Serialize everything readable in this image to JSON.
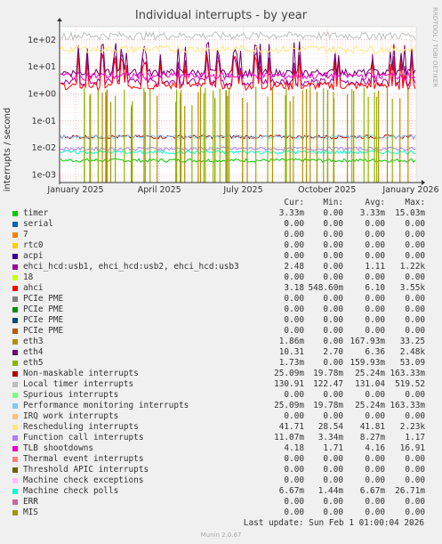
{
  "chart_data": {
    "type": "line",
    "title": "Individual interrupts - by year",
    "ylabel": "interrupts / second",
    "yscale": "log",
    "ylim": [
      0.0005,
      300
    ],
    "yticks": [
      "1e+02",
      "1e+01",
      "1e+00",
      "1e-01",
      "1e-02",
      "1e-03"
    ],
    "ytick_values": [
      100,
      10,
      1,
      0.1,
      0.01,
      0.001
    ],
    "xticks": [
      "January 2025",
      "April 2025",
      "July 2025",
      "October 2025",
      "January 2026"
    ],
    "grid": true,
    "columns": [
      "Cur:",
      "Min:",
      "Avg:",
      "Max:"
    ],
    "series": [
      {
        "name": "timer",
        "color": "#00cc00",
        "cur": "3.33m",
        "min": "0.00",
        "avg": "3.33m",
        "max": "15.03m",
        "level": 0.00333
      },
      {
        "name": "serial",
        "color": "#0066b3",
        "cur": "0.00",
        "min": "0.00",
        "avg": "0.00",
        "max": "0.00",
        "level": null
      },
      {
        "name": "7",
        "color": "#ff8000",
        "cur": "0.00",
        "min": "0.00",
        "avg": "0.00",
        "max": "0.00",
        "level": null
      },
      {
        "name": "rtc0",
        "color": "#ffcc00",
        "cur": "0.00",
        "min": "0.00",
        "avg": "0.00",
        "max": "0.00",
        "level": null
      },
      {
        "name": "acpi",
        "color": "#330099",
        "cur": "0.00",
        "min": "0.00",
        "avg": "0.00",
        "max": "0.00",
        "level": null
      },
      {
        "name": "ehci_hcd:usb1, ehci_hcd:usb2, ehci_hcd:usb3",
        "color": "#990099",
        "cur": "2.48",
        "min": "0.00",
        "avg": "1.11",
        "max": "1.22k",
        "level": 2.5
      },
      {
        "name": "18",
        "color": "#ccff00",
        "cur": "0.00",
        "min": "0.00",
        "avg": "0.00",
        "max": "0.00",
        "level": null
      },
      {
        "name": "ahci",
        "color": "#ff0000",
        "cur": "3.18",
        "min": "548.60m",
        "avg": "6.10",
        "max": "3.55k",
        "level": 1.8
      },
      {
        "name": "PCIe PME",
        "color": "#808080",
        "cur": "0.00",
        "min": "0.00",
        "avg": "0.00",
        "max": "0.00",
        "level": null
      },
      {
        "name": "PCIe PME",
        "color": "#008f00",
        "cur": "0.00",
        "min": "0.00",
        "avg": "0.00",
        "max": "0.00",
        "level": null
      },
      {
        "name": "PCIe PME",
        "color": "#00487d",
        "cur": "0.00",
        "min": "0.00",
        "avg": "0.00",
        "max": "0.00",
        "level": null
      },
      {
        "name": "PCIe PME",
        "color": "#b35a00",
        "cur": "0.00",
        "min": "0.00",
        "avg": "0.00",
        "max": "0.00",
        "level": null
      },
      {
        "name": "eth3",
        "color": "#b38f00",
        "cur": "1.86m",
        "min": "0.00",
        "avg": "167.93m",
        "max": "33.25",
        "level": null
      },
      {
        "name": "eth4",
        "color": "#6b006b",
        "cur": "10.31",
        "min": "2.70",
        "avg": "6.36",
        "max": "2.48k",
        "level": 5.5
      },
      {
        "name": "eth5",
        "color": "#8fb300",
        "cur": "1.73m",
        "min": "0.00",
        "avg": "159.93m",
        "max": "53.09",
        "level": null
      },
      {
        "name": "Non-maskable interrupts",
        "color": "#b30000",
        "cur": "25.09m",
        "min": "19.78m",
        "avg": "25.24m",
        "max": "163.33m",
        "level": 0.025
      },
      {
        "name": "Local timer interrupts",
        "color": "#bebebe",
        "cur": "130.91",
        "min": "122.47",
        "avg": "131.04",
        "max": "519.52",
        "level": 131
      },
      {
        "name": "Spurious interrupts",
        "color": "#80ff80",
        "cur": "0.00",
        "min": "0.00",
        "avg": "0.00",
        "max": "0.00",
        "level": null
      },
      {
        "name": "Performance monitoring interrupts",
        "color": "#80c9ff",
        "cur": "25.09m",
        "min": "19.78m",
        "avg": "25.24m",
        "max": "163.33m",
        "level": 0.025
      },
      {
        "name": "IRQ work interrupts",
        "color": "#ffc080",
        "cur": "0.00",
        "min": "0.00",
        "avg": "0.00",
        "max": "0.00",
        "level": null
      },
      {
        "name": "Rescheduling interrupts",
        "color": "#ffe680",
        "cur": "41.71",
        "min": "28.54",
        "avg": "41.81",
        "max": "2.23k",
        "level": 41
      },
      {
        "name": "Function call interrupts",
        "color": "#aa80ff",
        "cur": "11.07m",
        "min": "3.34m",
        "avg": "8.27m",
        "max": "1.17",
        "level": 0.009
      },
      {
        "name": "TLB shootdowns",
        "color": "#ee00cc",
        "cur": "4.18",
        "min": "1.71",
        "avg": "4.16",
        "max": "16.91",
        "level": 4.2
      },
      {
        "name": "Thermal event interrupts",
        "color": "#ff8080",
        "cur": "0.00",
        "min": "0.00",
        "avg": "0.00",
        "max": "0.00",
        "level": null
      },
      {
        "name": "Threshold APIC interrupts",
        "color": "#666600",
        "cur": "0.00",
        "min": "0.00",
        "avg": "0.00",
        "max": "0.00",
        "level": null
      },
      {
        "name": "Machine check exceptions",
        "color": "#ffbfff",
        "cur": "0.00",
        "min": "0.00",
        "avg": "0.00",
        "max": "0.00",
        "level": null
      },
      {
        "name": "Machine check polls",
        "color": "#00ffcc",
        "cur": "6.67m",
        "min": "1.44m",
        "avg": "6.67m",
        "max": "26.71m",
        "level": 0.00667
      },
      {
        "name": "ERR",
        "color": "#cc6699",
        "cur": "0.00",
        "min": "0.00",
        "avg": "0.00",
        "max": "0.00",
        "level": null
      },
      {
        "name": "MIS",
        "color": "#999900",
        "cur": "0.00",
        "min": "0.00",
        "avg": "0.00",
        "max": "0.00",
        "level": null
      }
    ]
  },
  "side_label": "RRDTOOL / TOBI OETIKER",
  "last_update": "Last update:  Sun Feb  1 01:00:04 2026",
  "footer": "Munin 2.0.67"
}
